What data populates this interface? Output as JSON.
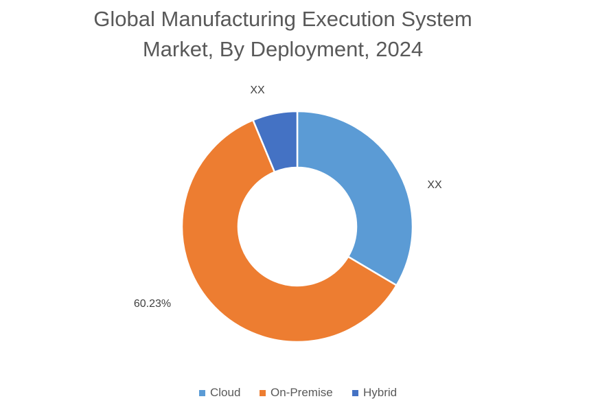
{
  "chart_data": {
    "type": "pie",
    "variant": "donut",
    "title_lines": [
      "Global Manufacturing Execution System",
      "Market, By Deployment, 2024"
    ],
    "categories": [
      "Cloud",
      "On-Premise",
      "Hybrid"
    ],
    "values": [
      33.5,
      60.23,
      6.27
    ],
    "data_labels": [
      "XX",
      "60.23%",
      "XX"
    ],
    "colors": [
      "#5B9BD5",
      "#ED7D31",
      "#4472C4"
    ],
    "start_angle_deg": 0,
    "direction": "clockwise",
    "legend": {
      "position": "bottom",
      "entries": [
        "Cloud",
        "On-Premise",
        "Hybrid"
      ]
    }
  }
}
